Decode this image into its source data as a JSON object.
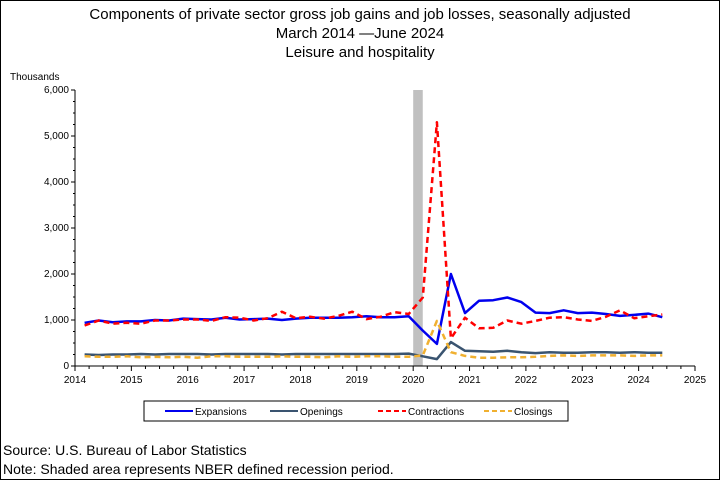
{
  "chart_data": {
    "type": "line",
    "title": "Components of private sector gross job gains and job losses, seasonally adjusted",
    "subtitle": "March 2014 —June 2024",
    "subtitle2": "Leisure and hospitality",
    "ylabel": "Thousands",
    "xlabel": "",
    "ylim": [
      0,
      6000
    ],
    "xlim": [
      2014,
      2025
    ],
    "y_ticks": [
      "0",
      "1,000",
      "2,000",
      "3,000",
      "4,000",
      "5,000",
      "6,000"
    ],
    "x_ticks": [
      "2014",
      "2015",
      "2016",
      "2017",
      "2018",
      "2019",
      "2020",
      "2021",
      "2022",
      "2023",
      "2024",
      "2025"
    ],
    "recession_shading": [
      2020.0,
      2020.17
    ],
    "x": [
      2014.17,
      2014.42,
      2014.67,
      2014.92,
      2015.17,
      2015.42,
      2015.67,
      2015.92,
      2016.17,
      2016.42,
      2016.67,
      2016.92,
      2017.17,
      2017.42,
      2017.67,
      2017.92,
      2018.17,
      2018.42,
      2018.67,
      2018.92,
      2019.17,
      2019.42,
      2019.67,
      2019.92,
      2020.17,
      2020.42,
      2020.67,
      2020.92,
      2021.17,
      2021.42,
      2021.67,
      2021.92,
      2022.17,
      2022.42,
      2022.67,
      2022.92,
      2023.17,
      2023.42,
      2023.67,
      2023.92,
      2024.17,
      2024.42
    ],
    "series": [
      {
        "name": "Expansions",
        "color": "#0000ee",
        "dash": "solid",
        "width": 2.5,
        "values": [
          940,
          990,
          950,
          970,
          970,
          1000,
          990,
          1030,
          1020,
          1010,
          1050,
          1010,
          1020,
          1030,
          1000,
          1030,
          1050,
          1050,
          1050,
          1060,
          1080,
          1060,
          1060,
          1080,
          770,
          480,
          2000,
          1150,
          1420,
          1430,
          1490,
          1390,
          1160,
          1150,
          1210,
          1150,
          1160,
          1130,
          1090,
          1110,
          1140,
          1060
        ]
      },
      {
        "name": "Openings",
        "color": "#3a5470",
        "dash": "solid",
        "width": 2.5,
        "values": [
          250,
          240,
          250,
          250,
          260,
          250,
          260,
          260,
          260,
          250,
          260,
          260,
          260,
          260,
          250,
          260,
          260,
          260,
          260,
          260,
          260,
          260,
          260,
          270,
          210,
          150,
          520,
          330,
          320,
          310,
          330,
          300,
          280,
          300,
          290,
          290,
          300,
          300,
          290,
          300,
          290,
          290
        ]
      },
      {
        "name": "Contractions",
        "color": "#ff0000",
        "dash": "6,4",
        "width": 2.5,
        "values": [
          880,
          990,
          920,
          940,
          920,
          990,
          990,
          1010,
          1010,
          980,
          1060,
          1050,
          990,
          1040,
          1180,
          1040,
          1070,
          1030,
          1090,
          1180,
          1020,
          1070,
          1170,
          1130,
          1490,
          5300,
          600,
          1050,
          820,
          830,
          990,
          920,
          980,
          1050,
          1060,
          1010,
          980,
          1070,
          1210,
          1040,
          1080,
          1120
        ]
      },
      {
        "name": "Closings",
        "color": "#f0b030",
        "dash": "6,4",
        "width": 2.5,
        "values": [
          210,
          200,
          200,
          210,
          190,
          200,
          190,
          200,
          180,
          210,
          210,
          200,
          200,
          200,
          210,
          200,
          200,
          190,
          210,
          200,
          210,
          210,
          200,
          200,
          230,
          980,
          300,
          220,
          180,
          180,
          190,
          190,
          200,
          220,
          230,
          220,
          230,
          230,
          230,
          220,
          230,
          230
        ]
      }
    ]
  },
  "footer": {
    "source": "Source: U.S. Bureau of Labor Statistics",
    "note": "Note: Shaded area represents NBER defined recession period."
  }
}
